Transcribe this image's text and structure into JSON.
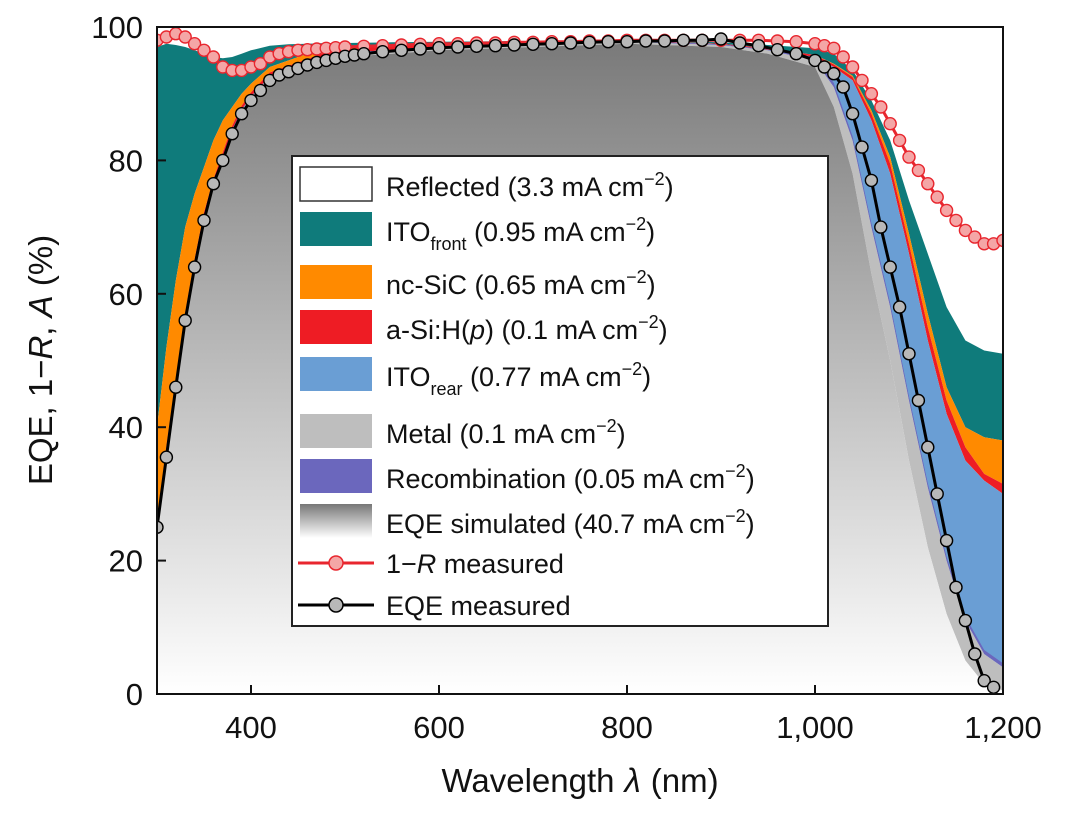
{
  "chart_data": {
    "type": "area",
    "xlabel_text": "Wavelength",
    "xlabel_symbol": "λ",
    "xlabel_unit": "(nm)",
    "ylabel_prefix": "EQE, 1−",
    "ylabel_R": "R",
    "ylabel_sep": ", ",
    "ylabel_A": "A",
    "ylabel_suffix": " (%)",
    "xlim": [
      300,
      1200
    ],
    "ylim": [
      0,
      100
    ],
    "x_ticks": [
      {
        "value": 400,
        "label": "400"
      },
      {
        "value": 600,
        "label": "600"
      },
      {
        "value": 800,
        "label": "800"
      },
      {
        "value": 1000,
        "label": "1,000"
      },
      {
        "value": 1200,
        "label": "1,200"
      }
    ],
    "y_ticks": [
      {
        "value": 0,
        "label": "0"
      },
      {
        "value": 20,
        "label": "20"
      },
      {
        "value": 40,
        "label": "40"
      },
      {
        "value": 60,
        "label": "60"
      },
      {
        "value": 80,
        "label": "80"
      },
      {
        "value": 100,
        "label": "100"
      }
    ],
    "stack_x": [
      300,
      310,
      320,
      330,
      340,
      350,
      360,
      370,
      380,
      390,
      400,
      420,
      440,
      460,
      480,
      500,
      550,
      600,
      700,
      800,
      900,
      950,
      1000,
      1020,
      1040,
      1060,
      1080,
      1100,
      1120,
      1140,
      1160,
      1180,
      1200
    ],
    "curves": {
      "eqe": [
        25,
        36,
        46,
        56,
        64,
        71,
        76,
        80,
        84,
        87,
        89,
        92,
        93,
        94,
        95,
        95.5,
        96,
        96.5,
        97,
        97.5,
        97,
        96,
        94,
        88,
        78,
        63,
        50,
        35,
        22,
        12,
        5,
        1.5,
        0.5
      ],
      "metal": [
        25.5,
        36.5,
        46.5,
        56.5,
        64.5,
        71.5,
        76.5,
        80.5,
        84.5,
        87.5,
        89.5,
        92.5,
        93.5,
        94.5,
        95.5,
        96,
        96.5,
        97,
        97.5,
        97.8,
        97.3,
        96.5,
        95,
        91,
        83,
        70,
        58,
        44,
        31,
        20,
        11,
        6,
        4
      ],
      "rear": [
        25.6,
        36.6,
        46.6,
        56.6,
        64.6,
        71.6,
        76.6,
        80.6,
        84.6,
        87.6,
        89.6,
        92.6,
        93.6,
        94.6,
        95.6,
        96.1,
        96.6,
        97.1,
        97.6,
        97.9,
        97.4,
        96.6,
        95.5,
        94,
        92,
        86,
        78,
        66,
        53,
        42,
        35,
        32,
        30
      ],
      "asi": [
        26.2,
        37.2,
        47.2,
        57.2,
        65.2,
        72.2,
        77.2,
        81.2,
        85.2,
        88.2,
        90.2,
        93.2,
        94.2,
        95.2,
        96.2,
        96.7,
        97.1,
        97.4,
        97.8,
        98,
        97.5,
        96.8,
        95.8,
        94.4,
        92.5,
        87,
        79.5,
        67.5,
        55,
        44,
        37,
        33,
        31.5
      ],
      "ncsic": [
        40,
        52,
        62,
        70,
        75,
        79,
        83,
        86,
        88,
        90,
        91.5,
        94,
        95,
        96,
        96.5,
        97,
        97.3,
        97.5,
        97.8,
        98,
        97.5,
        96.8,
        95.8,
        94.5,
        92.7,
        87.5,
        80.5,
        69,
        57,
        46,
        40,
        38.5,
        38
      ],
      "ito": [
        97,
        97.5,
        97.3,
        97,
        96.5,
        96,
        95.5,
        95.3,
        95.5,
        96,
        96.5,
        97.2,
        97.4,
        97.5,
        97.6,
        97.6,
        97.7,
        97.8,
        97.9,
        98,
        97.7,
        97.3,
        96.8,
        96,
        93.5,
        89,
        83,
        74,
        66,
        58,
        53,
        51.5,
        51
      ]
    },
    "r_x": [
      300,
      310,
      320,
      330,
      340,
      350,
      360,
      370,
      380,
      390,
      400,
      410,
      420,
      430,
      440,
      450,
      460,
      470,
      480,
      490,
      500,
      520,
      540,
      560,
      580,
      600,
      620,
      640,
      660,
      680,
      700,
      720,
      740,
      760,
      780,
      800,
      820,
      840,
      860,
      880,
      900,
      920,
      940,
      960,
      980,
      1000,
      1010,
      1020,
      1030,
      1040,
      1050,
      1060,
      1070,
      1080,
      1090,
      1100,
      1110,
      1120,
      1130,
      1140,
      1150,
      1160,
      1170,
      1180,
      1190,
      1200
    ],
    "r_values": [
      98,
      98.5,
      99,
      98.5,
      97.5,
      96.5,
      95.5,
      94,
      93.5,
      93.5,
      94,
      94.5,
      95.5,
      96,
      96.3,
      96.5,
      96.6,
      96.7,
      96.8,
      96.9,
      97,
      97.1,
      97.2,
      97.3,
      97.4,
      97.5,
      97.5,
      97.6,
      97.6,
      97.7,
      97.7,
      97.8,
      97.8,
      97.9,
      97.9,
      98,
      98,
      98,
      98,
      98,
      98,
      98,
      98,
      97.9,
      97.8,
      97.5,
      97.2,
      96.8,
      95.5,
      94,
      92,
      90,
      88,
      85.5,
      83,
      80.5,
      78.5,
      76.5,
      74.5,
      72.5,
      71,
      69.5,
      68.5,
      67.5,
      67.5,
      68
    ],
    "eqe_x": [
      300,
      310,
      320,
      330,
      340,
      350,
      360,
      370,
      380,
      390,
      400,
      410,
      420,
      430,
      440,
      450,
      460,
      470,
      480,
      490,
      500,
      510,
      520,
      540,
      560,
      580,
      600,
      620,
      640,
      660,
      680,
      700,
      720,
      740,
      760,
      780,
      800,
      820,
      840,
      860,
      880,
      900,
      920,
      940,
      960,
      980,
      1000,
      1010,
      1020,
      1030,
      1040,
      1050,
      1060,
      1070,
      1080,
      1090,
      1100,
      1110,
      1120,
      1130,
      1140,
      1150,
      1160,
      1170,
      1180,
      1190
    ],
    "eqe_values": [
      25,
      35.5,
      46,
      56,
      64,
      71,
      76.5,
      80,
      84,
      87,
      89,
      90.5,
      92,
      92.8,
      93.3,
      93.8,
      94.3,
      94.7,
      95,
      95.3,
      95.6,
      95.8,
      96,
      96.3,
      96.5,
      96.7,
      96.9,
      97,
      97.1,
      97.2,
      97.3,
      97.4,
      97.5,
      97.6,
      97.7,
      97.8,
      97.8,
      97.9,
      97.9,
      98,
      98,
      98.2,
      97.6,
      97.2,
      96.6,
      96,
      95,
      94,
      93,
      91,
      87,
      82,
      77,
      70,
      64,
      58,
      51,
      44,
      37,
      30,
      23,
      16,
      11,
      6,
      2,
      1
    ],
    "colors": {
      "reflected": "#ffffff",
      "ito_front": "#0f7b7b",
      "nc_sic": "#ff8a00",
      "asi": "#ee1c24",
      "ito_rear": "#6a9ed4",
      "metal": "#bebebe",
      "recombination": "#6b67bd",
      "eqe_sim_dark": "#7f7f7f",
      "eqe_sim_light": "#ffffff",
      "r_line": "#e8262e",
      "r_marker": "#f4a6a6",
      "eqe_line": "#000000",
      "eqe_marker": "#b8b8b8"
    },
    "legend": {
      "position": "center",
      "entries": [
        {
          "key": "reflected",
          "label": "Reflected (3.3 mA cm",
          "sub": "",
          "exp": "−2",
          "tail": ")"
        },
        {
          "key": "ito_front",
          "label": "ITO",
          "sub": "front",
          "label2": " (0.95 mA cm",
          "exp": "−2",
          "tail": ")"
        },
        {
          "key": "nc_sic",
          "label": "nc-SiC (0.65 mA cm",
          "sub": "",
          "exp": "−2",
          "tail": ")"
        },
        {
          "key": "asi",
          "label": "a-Si:H(",
          "italic": "p",
          "label2": ") (0.1 mA cm",
          "exp": "−2",
          "tail": ")"
        },
        {
          "key": "ito_rear",
          "label": "ITO",
          "sub": "rear",
          "label2": " (0.77 mA cm",
          "exp": "−2",
          "tail": ")"
        },
        {
          "key": "metal",
          "label": "Metal (0.1 mA cm",
          "sub": "",
          "exp": "−2",
          "tail": ")"
        },
        {
          "key": "recombination",
          "label": "Recombination (0.05 mA cm",
          "sub": "",
          "exp": "−2",
          "tail": ")"
        },
        {
          "key": "eqe_sim",
          "label": "EQE simulated (40.7 mA cm",
          "sub": "",
          "exp": "−2",
          "tail": ")"
        },
        {
          "key": "r_meas",
          "label": "1−",
          "italic": "R",
          "label2": " measured"
        },
        {
          "key": "eqe_meas",
          "label": "EQE measured"
        }
      ]
    }
  }
}
